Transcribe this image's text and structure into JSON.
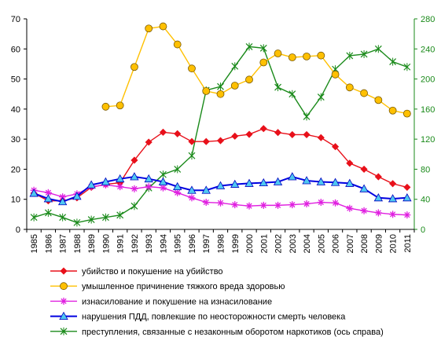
{
  "chart_data": {
    "type": "line",
    "x": [
      "1985",
      "1986",
      "1987",
      "1988",
      "1989",
      "1990",
      "1991",
      "1992",
      "1993",
      "1994",
      "1995",
      "1996",
      "1997",
      "1998",
      "1999",
      "2000",
      "2001",
      "2002",
      "2003",
      "2004",
      "2005",
      "2006",
      "2007",
      "2008",
      "2009",
      "2010",
      "2011"
    ],
    "ylim": [
      0,
      70
    ],
    "y_ticks": [
      "0",
      "10",
      "20",
      "30",
      "40",
      "50",
      "60",
      "70"
    ],
    "y2lim": [
      0,
      280
    ],
    "y2_ticks": [
      "0",
      "40",
      "80",
      "120",
      "160",
      "200",
      "240",
      "280"
    ],
    "grid": false,
    "legend_position": "bottom",
    "series": [
      {
        "name": "убийство и покушение на убийство",
        "axis": "left",
        "color": "#e8101a",
        "marker": "diamond",
        "values": [
          12,
          9.5,
          9.5,
          10.5,
          14,
          15,
          15.5,
          23,
          29,
          32.3,
          31.8,
          29.2,
          29.2,
          29.5,
          31,
          31.6,
          33.5,
          32.2,
          31.5,
          31.5,
          30.5,
          27.5,
          22,
          20,
          17.5,
          15.2,
          14
        ]
      },
      {
        "name": "умышленное причинение тяжкого вреда здоровью",
        "axis": "left",
        "color": "#ffc000",
        "marker": "circle",
        "values": [
          null,
          null,
          null,
          null,
          null,
          40.8,
          41.2,
          54,
          66.8,
          67.5,
          61.5,
          53.5,
          46,
          45,
          47.8,
          49.8,
          55.5,
          58.5,
          57.2,
          57.5,
          57.8,
          51.5,
          47.2,
          45.3,
          43,
          39.5,
          38.5
        ]
      },
      {
        "name": "изнасилование и покушение на изнасилование",
        "axis": "left",
        "color": "#e020e0",
        "marker": "star",
        "values": [
          13,
          12.2,
          10.8,
          11.8,
          14.2,
          14.8,
          14.2,
          13.5,
          14.2,
          13.8,
          12.2,
          10.5,
          9,
          8.8,
          8.2,
          7.8,
          8,
          8,
          8.2,
          8.5,
          9,
          8.8,
          7,
          6.2,
          5.5,
          5,
          4.8
        ]
      },
      {
        "name": "нарушения ПДД, повлекшие по неосторожности смерть человека",
        "axis": "left",
        "color": "#0000e0",
        "marker": "triangle",
        "values": [
          12,
          10.2,
          9.2,
          11,
          14.8,
          15.8,
          16.8,
          17.5,
          16.8,
          15.8,
          14.2,
          13,
          13,
          14.5,
          15,
          15.3,
          15.5,
          15.8,
          17.5,
          16.2,
          15.8,
          15.6,
          15.3,
          13.5,
          10.5,
          10.2,
          10.5
        ]
      },
      {
        "name": "преступления, связанные с незаконным оборотом наркотиков (ось справа)",
        "axis": "right",
        "color": "#1a8a1a",
        "marker": "x",
        "values": [
          16,
          22,
          16,
          9,
          13,
          16,
          19,
          31,
          55,
          73,
          80,
          98,
          185,
          190,
          217,
          243,
          241,
          189,
          180,
          150,
          176,
          213,
          231,
          233,
          240,
          223,
          216
        ]
      }
    ]
  }
}
